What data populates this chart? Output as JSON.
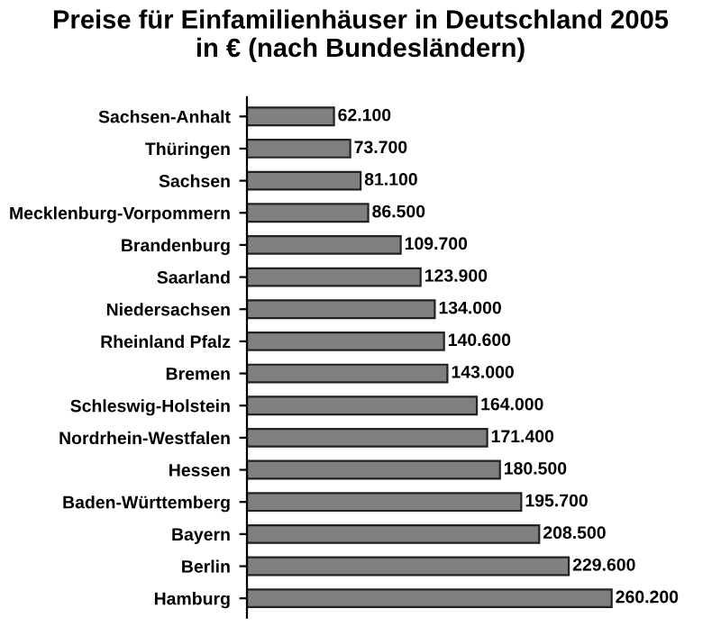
{
  "chart_data": {
    "type": "bar",
    "orientation": "horizontal",
    "title": "Preise für Einfamilienhäuser in Deutschland 2005\nin € (nach Bundesländern)",
    "categories": [
      "Sachsen-Anhalt",
      "Thüringen",
      "Sachsen",
      "Mecklenburg-Vorpommern",
      "Brandenburg",
      "Saarland",
      "Niedersachsen",
      "Rheinland Pfalz",
      "Bremen",
      "Schleswig-Holstein",
      "Nordrhein-Westfalen",
      "Hessen",
      "Baden-Württemberg",
      "Bayern",
      "Berlin",
      "Hamburg"
    ],
    "values": [
      62100,
      73700,
      81100,
      86500,
      109700,
      123900,
      134000,
      140600,
      143000,
      164000,
      171400,
      180500,
      195700,
      208500,
      229600,
      260200
    ],
    "value_labels": [
      "62.100",
      "73.700",
      "81.100",
      "86.500",
      "109.700",
      "123.900",
      "134.000",
      "140.600",
      "143.000",
      "164.000",
      "171.400",
      "180.500",
      "195.700",
      "208.500",
      "229.600",
      "260.200"
    ],
    "color": "#808080",
    "grid": false,
    "legend": false
  }
}
